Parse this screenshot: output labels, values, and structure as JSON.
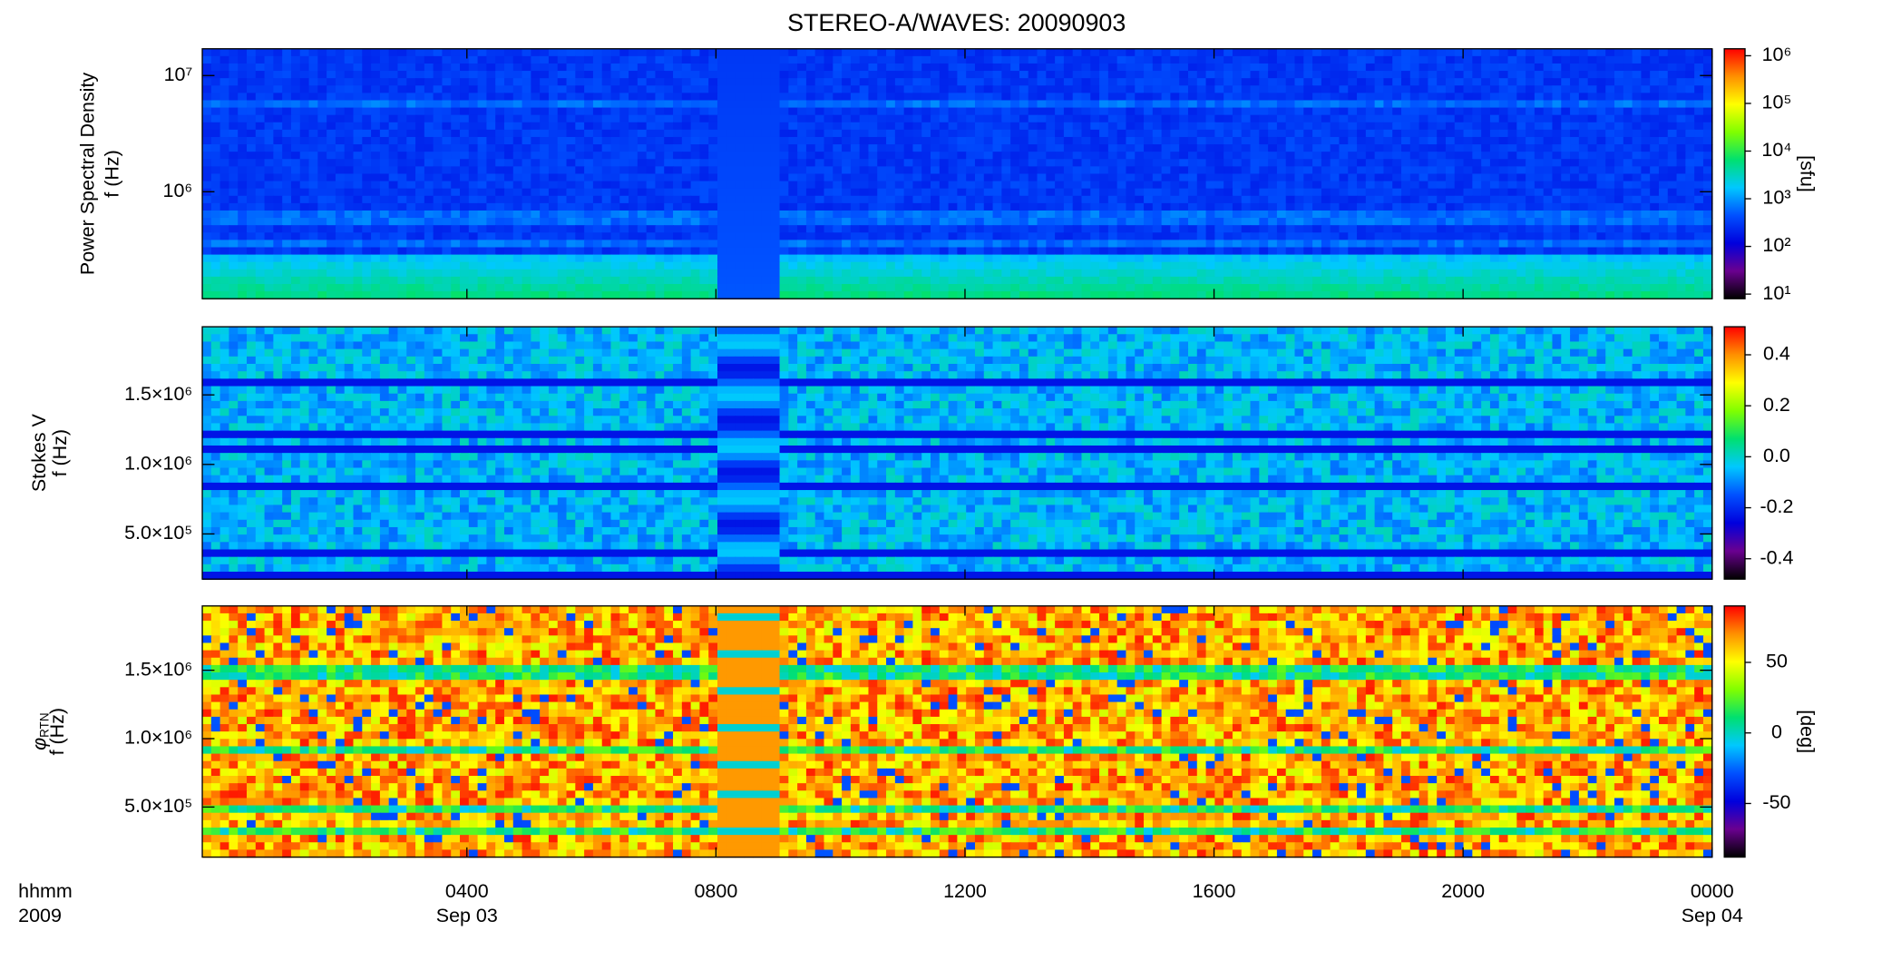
{
  "title": "STEREO-A/WAVES: 20090903",
  "chart_data": [
    {
      "type": "heatmap",
      "ylabel": "Power Spectral Density",
      "ylabel_unit": "f (Hz)",
      "ylog": true,
      "xlim": [
        -0.25,
        24
      ],
      "ylim": [
        120000,
        17000000
      ],
      "yticks": [
        {
          "value": 1000000,
          "label": "10⁶"
        },
        {
          "value": 10000000,
          "label": "10⁷"
        }
      ],
      "colorbar": {
        "log": true,
        "zlim": [
          8,
          1400000
        ],
        "label": "[sfu]",
        "ticks": [
          {
            "value": 10,
            "label": "10¹"
          },
          {
            "value": 100,
            "label": "10²"
          },
          {
            "value": 1000,
            "label": "10³"
          },
          {
            "value": 10000,
            "label": "10⁴"
          },
          {
            "value": 100000,
            "label": "10⁵"
          },
          {
            "value": 1000000,
            "label": "10⁶"
          }
        ],
        "colormap": [
          "#000000",
          "#6a0090",
          "#0000dd",
          "#0050ff",
          "#00c8ff",
          "#00e070",
          "#80ff00",
          "#ffff00",
          "#ff9000",
          "#ff0000"
        ]
      }
    },
    {
      "type": "heatmap",
      "ylabel": "Stokes V",
      "ylabel_unit": "f (Hz)",
      "ylog": false,
      "xlim": [
        -0.25,
        24
      ],
      "ylim": [
        175000,
        1990000
      ],
      "yticks": [
        {
          "value": 500000,
          "label": "5.0×10⁵"
        },
        {
          "value": 1000000,
          "label": "1.0×10⁶"
        },
        {
          "value": 1500000,
          "label": "1.5×10⁶"
        }
      ],
      "colorbar": {
        "log": false,
        "zlim": [
          -0.48,
          0.51
        ],
        "ticks": [
          -0.4,
          -0.2,
          {
            "value": 0,
            "label": "0.0"
          },
          0.2,
          0.4
        ],
        "colormap": [
          "#000000",
          "#6a0090",
          "#0000dd",
          "#0050ff",
          "#00c8ff",
          "#00e070",
          "#80ff00",
          "#ffff00",
          "#ff9000",
          "#ff0000"
        ]
      }
    },
    {
      "type": "heatmap",
      "ylabel": "φ",
      "ylabel_sub": "RTN",
      "ylabel_unit": "f (Hz)",
      "ylog": false,
      "xlim": [
        -0.25,
        24
      ],
      "ylim": [
        134000,
        1970000
      ],
      "yticks": [
        {
          "value": 500000,
          "label": "5.0×10⁵"
        },
        {
          "value": 1000000,
          "label": "1.0×10⁶"
        },
        {
          "value": 1500000,
          "label": "1.5×10⁶"
        }
      ],
      "xticks": [
        {
          "value": 4,
          "label": "0400"
        },
        {
          "value": 8,
          "label": "0800"
        },
        {
          "value": 12,
          "label": "1200"
        },
        {
          "value": 16,
          "label": "1600"
        },
        {
          "value": 20,
          "label": "2000"
        },
        {
          "value": 24,
          "label": "0000"
        }
      ],
      "date_labels": [
        {
          "value": 4,
          "label": "Sep 03"
        },
        {
          "value": 24,
          "label": "Sep 04"
        }
      ],
      "xlabel": "hhmm",
      "year": "2009",
      "colorbar": {
        "log": false,
        "zlim": [
          -88,
          90
        ],
        "label": "[deg]",
        "ticks": [
          -50,
          0,
          50
        ],
        "colormap": [
          "#000000",
          "#6a0090",
          "#0000dd",
          "#0050ff",
          "#00c8ff",
          "#00e070",
          "#80ff00",
          "#ffff00",
          "#ff9000",
          "#ff0000"
        ]
      }
    }
  ]
}
